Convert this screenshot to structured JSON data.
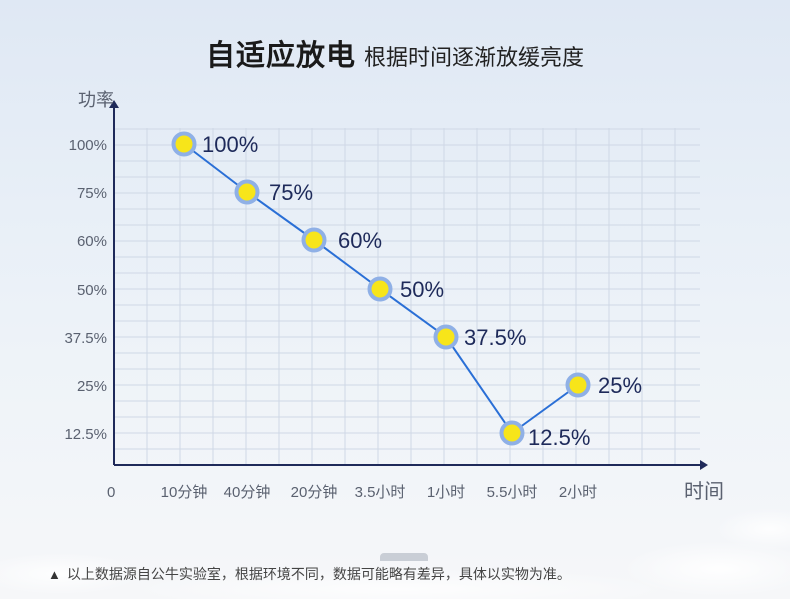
{
  "header": {
    "title_main": "自适应放电",
    "title_sub": "根据时间逐渐放缓亮度"
  },
  "footer": {
    "warning_icon": "warning-triangle-icon",
    "note": "以上数据源自公牛实验室，根据环境不同，数据可能略有差异，具体以实物为准。"
  },
  "chart_data": {
    "type": "line",
    "ylabel": "功率",
    "xlabel": "时间",
    "origin_label": "0",
    "categories": [
      "10分钟",
      "40分钟",
      "20分钟",
      "3.5小时",
      "1小时",
      "5.5小时",
      "2小时"
    ],
    "y_ticks": [
      "100%",
      "75%",
      "60%",
      "50%",
      "37.5%",
      "25%",
      "12.5%"
    ],
    "series": [
      {
        "values": [
          100,
          75,
          60,
          50,
          37.5,
          12.5,
          25
        ],
        "labels": [
          "100%",
          "75%",
          "60%",
          "50%",
          "37.5%",
          "12.5%",
          "25%"
        ]
      }
    ],
    "grid": true,
    "colors": {
      "line": "#2a6fd6",
      "point_fill": "#f7e51a",
      "point_ring": "#8fb0e6",
      "axis": "#1f2a5a"
    }
  }
}
